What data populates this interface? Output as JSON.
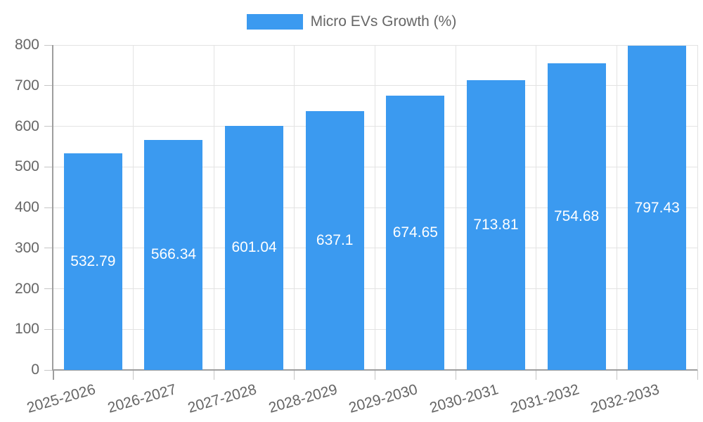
{
  "chart_data": {
    "type": "bar",
    "title": "",
    "legend_label": "Micro EVs Growth (%)",
    "legend_position": "top",
    "categories": [
      "2025-2026",
      "2026-2027",
      "2027-2028",
      "2028-2029",
      "2029-2030",
      "2030-2031",
      "2031-2032",
      "2032-2033"
    ],
    "values": [
      532.79,
      566.34,
      601.04,
      637.1,
      674.65,
      713.81,
      754.68,
      797.43
    ],
    "value_labels": [
      "532.79",
      "566.34",
      "601.04",
      "637.1",
      "674.65",
      "713.81",
      "754.68",
      "797.43"
    ],
    "xlabel": "",
    "ylabel": "",
    "ylim": [
      0,
      800
    ],
    "yticks": [
      0,
      100,
      200,
      300,
      400,
      500,
      600,
      700,
      800
    ],
    "grid": true,
    "colors": {
      "bar": "#3b9af0",
      "value_label": "#ffffff",
      "axis_text": "#666666",
      "gridline": "#e3e3e3",
      "axis_line": "#9e9e9e",
      "tick_mark": "#c6c6c6"
    }
  }
}
